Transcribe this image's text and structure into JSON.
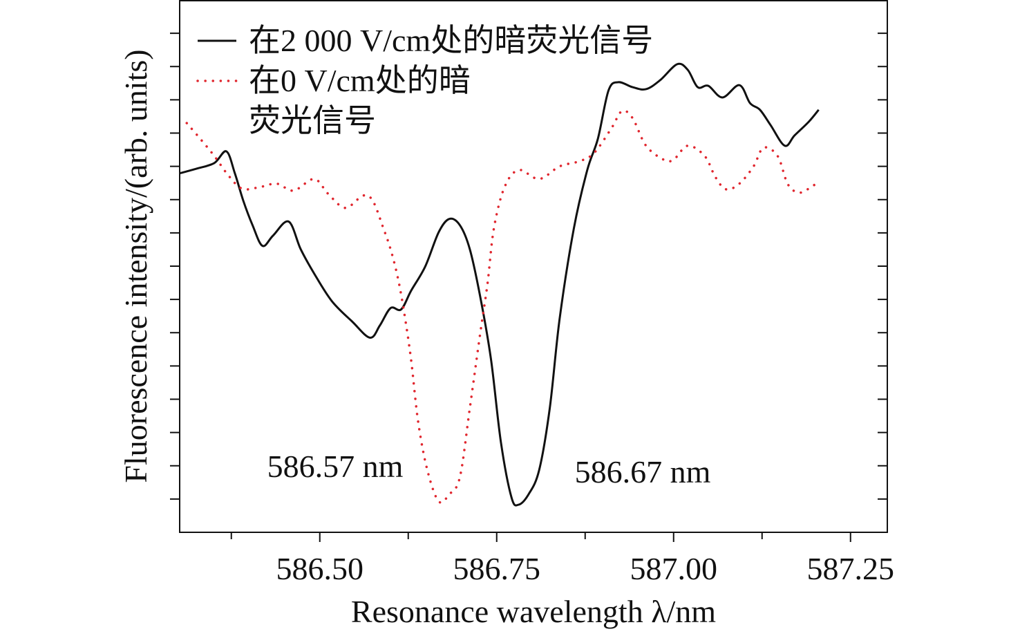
{
  "chart_data": {
    "type": "line",
    "xlabel": "Resonance wavelength λ/nm",
    "ylabel": "Fluorescence intensity/(arb. units)",
    "xlim": [
      586.302,
      587.302
    ],
    "xticks": [
      {
        "value": 586.5,
        "label": "586.50"
      },
      {
        "value": 586.75,
        "label": "586.75"
      },
      {
        "value": 587.0,
        "label": "587.00"
      },
      {
        "value": 587.25,
        "label": "587.25"
      }
    ],
    "ylim": [
      0,
      16
    ],
    "yticks": [
      1,
      2,
      3,
      4,
      5,
      6,
      7,
      8,
      9,
      10,
      11,
      12,
      13,
      14,
      15
    ],
    "ytick_labels": false,
    "legend": "upper left",
    "annotations": [
      {
        "text": "586.57 nm"
      },
      {
        "text": "586.67 nm"
      }
    ],
    "series": [
      {
        "name": "在2 000 V/cm处的暗荧光信号",
        "color": "#111111",
        "style": "solid",
        "x": [
          586.302,
          586.326,
          586.351,
          586.368,
          586.38,
          586.392,
          586.405,
          586.419,
          586.434,
          586.456,
          586.473,
          586.492,
          586.517,
          586.546,
          586.571,
          586.585,
          586.6,
          586.615,
          586.629,
          586.649,
          586.668,
          586.683,
          586.698,
          586.712,
          586.727,
          586.742,
          586.756,
          586.771,
          586.781,
          586.795,
          586.81,
          586.825,
          586.839,
          586.859,
          586.878,
          586.893,
          586.908,
          586.922,
          586.942,
          586.961,
          586.981,
          587.005,
          587.02,
          587.034,
          587.049,
          587.069,
          587.093,
          587.108,
          587.122,
          587.137,
          587.157,
          587.171,
          587.191,
          587.205
        ],
        "values": [
          10.79,
          10.93,
          11.1,
          11.45,
          10.79,
          9.96,
          9.23,
          8.61,
          8.92,
          9.34,
          8.51,
          7.78,
          6.95,
          6.33,
          5.85,
          6.22,
          6.74,
          6.7,
          7.26,
          7.99,
          9.02,
          9.42,
          9.23,
          8.51,
          7.05,
          5.19,
          2.7,
          1.04,
          0.83,
          1.14,
          1.87,
          3.73,
          6.43,
          9.13,
          10.89,
          11.83,
          13.28,
          13.53,
          13.38,
          13.32,
          13.59,
          14.07,
          13.9,
          13.38,
          13.42,
          13.07,
          13.44,
          12.9,
          12.7,
          12.24,
          11.62,
          11.93,
          12.34,
          12.7
        ]
      },
      {
        "name": "在0 V/cm处的暗荧光信号",
        "color": "#e0262e",
        "style": "dotted",
        "x": [
          586.312,
          586.331,
          586.351,
          586.37,
          586.39,
          586.414,
          586.439,
          586.463,
          586.492,
          586.512,
          586.536,
          586.561,
          586.575,
          586.59,
          586.6,
          586.61,
          586.619,
          586.629,
          586.639,
          586.652,
          586.668,
          586.683,
          586.698,
          586.712,
          586.727,
          586.737,
          586.746,
          586.761,
          586.781,
          586.81,
          586.839,
          586.868,
          586.888,
          586.912,
          586.927,
          586.942,
          586.961,
          586.986,
          587.0,
          587.02,
          587.044,
          587.059,
          587.074,
          587.093,
          587.113,
          587.127,
          587.147,
          587.161,
          587.176,
          587.191,
          587.205
        ],
        "values": [
          12.3,
          11.83,
          11.31,
          10.75,
          10.33,
          10.37,
          10.48,
          10.27,
          10.62,
          10.17,
          9.75,
          10.12,
          9.96,
          9.13,
          8.51,
          7.68,
          6.64,
          5.19,
          3.32,
          1.87,
          0.93,
          1.14,
          1.66,
          3.73,
          6.02,
          7.47,
          9.13,
          10.37,
          10.89,
          10.62,
          11.0,
          11.16,
          11.41,
          12.14,
          12.66,
          12.45,
          11.62,
          11.2,
          11.2,
          11.62,
          11.31,
          10.68,
          10.31,
          10.48,
          11.0,
          11.56,
          11.31,
          10.48,
          10.21,
          10.33,
          10.54
        ]
      }
    ]
  }
}
